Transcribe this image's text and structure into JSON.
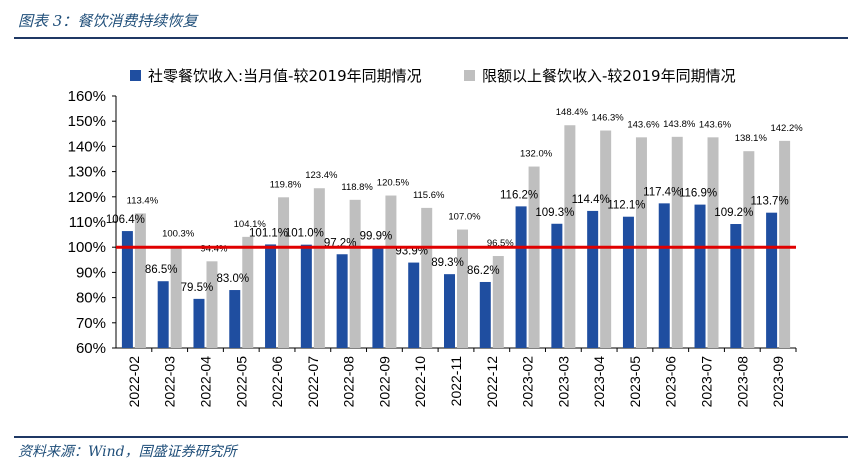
{
  "header": {
    "title": "图表 3：餐饮消费持续恢复"
  },
  "footer": {
    "source": "资料来源：Wind，国盛证券研究所"
  },
  "chart_data": {
    "type": "bar",
    "categories": [
      "2022-02",
      "2022-03",
      "2022-04",
      "2022-05",
      "2022-06",
      "2022-07",
      "2022-08",
      "2022-09",
      "2022-10",
      "2022-11",
      "2022-12",
      "2023-02",
      "2023-03",
      "2023-04",
      "2023-05",
      "2023-06",
      "2023-07",
      "2023-08",
      "2023-09"
    ],
    "series": [
      {
        "name": "社零餐饮收入:当月值-较2019年同期情况",
        "color": "#1f4ea0",
        "values": [
          106.4,
          86.5,
          79.5,
          83.0,
          101.1,
          101.0,
          97.2,
          99.9,
          93.9,
          89.3,
          86.2,
          116.2,
          109.3,
          114.4,
          112.1,
          117.4,
          116.9,
          109.2,
          113.7
        ],
        "labels": [
          "106.4%",
          "86.5%",
          "79.5%",
          "83.0%",
          "101.1%",
          "101.0%",
          "97.2%",
          "99.9%",
          "93.9%",
          "89.3%",
          "86.2%",
          "116.2%",
          "109.3%",
          "114.4%",
          "112.1%",
          "117.4%",
          "116.9%",
          "109.2%",
          "113.7%"
        ]
      },
      {
        "name": "限额以上餐饮收入-较2019年同期情况",
        "color": "#bfbfbf",
        "values": [
          113.4,
          100.3,
          94.4,
          104.1,
          119.8,
          123.4,
          118.8,
          120.5,
          115.6,
          107.0,
          96.5,
          132.0,
          148.4,
          146.3,
          143.6,
          143.8,
          143.6,
          138.1,
          142.2
        ],
        "labels": [
          "113.4%",
          "100.3%",
          "94.4%",
          "104.1%",
          "119.8%",
          "123.4%",
          "118.8%",
          "120.5%",
          "115.6%",
          "107.0%",
          "96.5%",
          "132.0%",
          "148.4%",
          "146.3%",
          "143.6%",
          "143.8%",
          "143.6%",
          "138.1%",
          "142.2%"
        ]
      }
    ],
    "reference_line": {
      "value": 100,
      "color": "#e00000"
    },
    "ylim": [
      60,
      160
    ],
    "yticks": [
      60,
      70,
      80,
      90,
      100,
      110,
      120,
      130,
      140,
      150,
      160
    ],
    "ytick_labels": [
      "60%",
      "70%",
      "80%",
      "90%",
      "100%",
      "110%",
      "120%",
      "130%",
      "140%",
      "150%",
      "160%"
    ],
    "xlabel": "",
    "ylabel": "",
    "legend_position": "top"
  }
}
